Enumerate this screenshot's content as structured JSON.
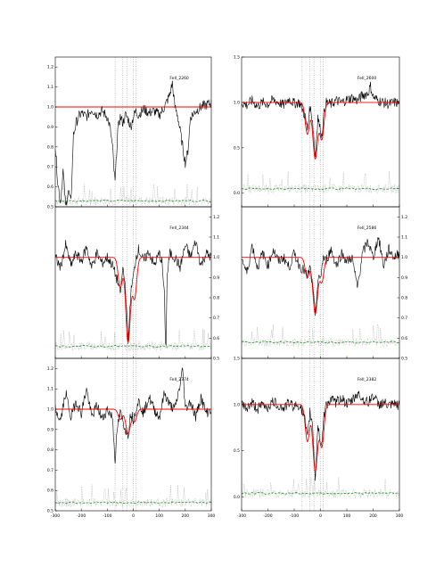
{
  "chart_data": [
    {
      "type": "line",
      "label": "FeII_2260",
      "xlim": [
        -300,
        300
      ],
      "ylim": [
        0.5,
        1.25
      ],
      "yticks": [
        "0.5",
        "0.6",
        "0.7",
        "0.8",
        "0.9",
        "1.0",
        "1.1",
        "1.2"
      ],
      "yaxis_side": "left",
      "vlines": [
        -70,
        -40,
        -25,
        0,
        10
      ],
      "components": [],
      "noise_level": 0.53,
      "segments": [
        {
          "x": [
            -300,
            -290,
            -280,
            -270,
            -260,
            -250,
            -240,
            -230,
            -220,
            -210,
            -200,
            -180,
            -160,
            -140,
            -120,
            -100,
            -90,
            -80,
            -75,
            -70,
            -65,
            -60,
            -50,
            -40,
            -30,
            -20,
            -10,
            0,
            10,
            20,
            40,
            60,
            80,
            100,
            120,
            140,
            150,
            160,
            170,
            180,
            190,
            200,
            210,
            220,
            240,
            260,
            280,
            300
          ],
          "y": [
            0.8,
            0.62,
            0.52,
            0.68,
            0.5,
            0.58,
            0.52,
            0.86,
            0.92,
            0.95,
            0.97,
            0.95,
            0.99,
            0.96,
            0.98,
            0.95,
            0.9,
            0.8,
            0.7,
            0.62,
            0.75,
            0.88,
            0.95,
            0.92,
            0.96,
            0.94,
            0.9,
            0.95,
            0.98,
            0.96,
            0.99,
            0.97,
            0.98,
            0.96,
            1.0,
            1.06,
            1.12,
            1.0,
            0.96,
            0.88,
            0.8,
            0.72,
            0.78,
            0.95,
            0.98,
            1.0,
            1.01,
            1.02
          ]
        }
      ]
    },
    {
      "type": "line",
      "label": "FeII_2600",
      "xlim": [
        -300,
        300
      ],
      "ylim": [
        -0.15,
        1.5
      ],
      "yticks": [
        "0.0",
        "0.5",
        "1.0",
        "1.5"
      ],
      "yaxis_side": "left",
      "vlines": [
        -70,
        -40,
        -25,
        0,
        10
      ],
      "components": [
        {
          "center": -50,
          "depth": 0.35,
          "width": 8
        },
        {
          "center": -20,
          "depth": 0.62,
          "width": 9
        },
        {
          "center": 5,
          "depth": 0.4,
          "width": 8
        }
      ],
      "noise_level": 0.05,
      "segments": [
        {
          "x": [
            -300,
            -280,
            -260,
            -240,
            -220,
            -200,
            -180,
            -160,
            -140,
            -120,
            -100,
            -80,
            -60,
            -50,
            -40,
            -30,
            -20,
            -10,
            0,
            5,
            10,
            20,
            40,
            60,
            80,
            100,
            120,
            140,
            160,
            180,
            190,
            200,
            220,
            240,
            260,
            280,
            300
          ],
          "y": [
            1.0,
            0.97,
            1.02,
            0.96,
            1.0,
            0.98,
            1.03,
            1.0,
            0.97,
            1.04,
            0.99,
            1.0,
            0.86,
            0.7,
            0.95,
            0.8,
            0.4,
            0.85,
            0.68,
            0.62,
            0.8,
            1.0,
            0.98,
            1.02,
            1.0,
            1.03,
            1.05,
            1.02,
            1.08,
            1.1,
            1.18,
            1.06,
            1.02,
            1.0,
            0.98,
            1.0,
            0.99
          ]
        }
      ]
    },
    {
      "type": "line",
      "label": "FeII_2344",
      "xlim": [
        -300,
        300
      ],
      "ylim": [
        0.5,
        1.25
      ],
      "yticks": [
        "0.5",
        "0.6",
        "0.7",
        "0.8",
        "0.9",
        "1.0",
        "1.1",
        "1.2"
      ],
      "yaxis_side": "right",
      "vlines": [
        -70,
        -40,
        -25,
        0,
        10
      ],
      "components": [
        {
          "center": -50,
          "depth": 0.15,
          "width": 8
        },
        {
          "center": -20,
          "depth": 0.42,
          "width": 9
        },
        {
          "center": 5,
          "depth": 0.2,
          "width": 8
        }
      ],
      "noise_level": 0.56,
      "segments": [
        {
          "x": [
            -300,
            -280,
            -260,
            -240,
            -220,
            -200,
            -180,
            -160,
            -140,
            -120,
            -100,
            -80,
            -60,
            -50,
            -40,
            -30,
            -20,
            -10,
            0,
            10,
            20,
            40,
            60,
            80,
            100,
            110,
            120,
            125,
            130,
            140,
            160,
            180,
            200,
            220,
            240,
            260,
            280,
            300
          ],
          "y": [
            1.0,
            0.95,
            1.06,
            0.96,
            1.02,
            0.98,
            1.05,
            0.95,
            1.02,
            0.97,
            1.0,
            0.96,
            0.88,
            0.82,
            0.95,
            0.85,
            0.58,
            0.82,
            0.9,
            1.0,
            1.04,
            0.98,
            1.03,
            0.96,
            1.02,
            0.98,
            0.8,
            0.5,
            0.9,
            1.02,
            1.0,
            0.95,
            1.06,
            1.0,
            1.08,
            0.96,
            1.02,
            1.0
          ]
        }
      ]
    },
    {
      "type": "line",
      "label": "FeII_2586",
      "xlim": [
        -300,
        300
      ],
      "ylim": [
        0.5,
        1.25
      ],
      "yticks": [
        "0.5",
        "0.6",
        "0.7",
        "0.8",
        "0.9",
        "1.0",
        "1.1",
        "1.2"
      ],
      "yaxis_side": "right",
      "vlines": [
        -70,
        -40,
        -25,
        0,
        10
      ],
      "components": [
        {
          "center": -50,
          "depth": 0.1,
          "width": 8
        },
        {
          "center": -20,
          "depth": 0.28,
          "width": 9
        },
        {
          "center": 5,
          "depth": 0.12,
          "width": 8
        }
      ],
      "noise_level": 0.58,
      "segments": [
        {
          "x": [
            -300,
            -280,
            -260,
            -240,
            -220,
            -200,
            -180,
            -160,
            -140,
            -120,
            -100,
            -80,
            -60,
            -50,
            -40,
            -30,
            -20,
            -10,
            0,
            10,
            20,
            40,
            60,
            80,
            100,
            120,
            140,
            160,
            180,
            200,
            220,
            240,
            260,
            280,
            300
          ],
          "y": [
            1.0,
            0.92,
            1.06,
            0.95,
            1.02,
            0.96,
            1.04,
            0.98,
            1.0,
            0.95,
            1.02,
            0.96,
            0.93,
            0.9,
            0.95,
            0.85,
            0.72,
            0.88,
            0.9,
            1.0,
            0.98,
            1.04,
            0.96,
            1.02,
            0.98,
            1.0,
            0.85,
            1.02,
            1.08,
            1.0,
            1.1,
            0.96,
            1.04,
            1.0,
            1.02
          ]
        }
      ]
    },
    {
      "type": "line",
      "label": "FeII_2374",
      "xlim": [
        -300,
        300
      ],
      "ylim": [
        0.5,
        1.25
      ],
      "yticks": [
        "0.5",
        "0.6",
        "0.7",
        "0.8",
        "0.9",
        "1.0",
        "1.1",
        "1.2"
      ],
      "yaxis_side": "left",
      "vlines": [
        -70,
        -40,
        -25,
        0,
        10
      ],
      "components": [
        {
          "center": -50,
          "depth": 0.05,
          "width": 8
        },
        {
          "center": -20,
          "depth": 0.12,
          "width": 9
        },
        {
          "center": 5,
          "depth": 0.06,
          "width": 8
        }
      ],
      "noise_level": 0.54,
      "segments": [
        {
          "x": [
            -300,
            -280,
            -260,
            -240,
            -220,
            -200,
            -180,
            -160,
            -140,
            -120,
            -100,
            -80,
            -70,
            -60,
            -50,
            -40,
            -30,
            -20,
            -10,
            0,
            10,
            20,
            40,
            60,
            80,
            100,
            120,
            140,
            160,
            180,
            190,
            200,
            220,
            240,
            260,
            280,
            300
          ],
          "y": [
            1.0,
            0.94,
            1.08,
            0.96,
            1.04,
            0.98,
            1.1,
            0.96,
            1.02,
            0.95,
            1.0,
            0.96,
            0.75,
            0.92,
            0.98,
            0.94,
            0.9,
            0.88,
            0.98,
            0.95,
            1.0,
            1.04,
            0.98,
            1.06,
            1.0,
            0.96,
            1.08,
            1.02,
            1.0,
            1.12,
            1.2,
            1.0,
            1.04,
            0.96,
            1.06,
            0.98,
            1.0
          ]
        }
      ]
    },
    {
      "type": "line",
      "label": "FeII_2382",
      "xlim": [
        -300,
        300
      ],
      "ylim": [
        -0.15,
        1.5
      ],
      "yticks": [
        "0.0",
        "0.5",
        "1.0",
        "1.5"
      ],
      "yaxis_side": "left",
      "vlines": [
        -70,
        -40,
        -25,
        0,
        10
      ],
      "components": [
        {
          "center": -50,
          "depth": 0.4,
          "width": 8
        },
        {
          "center": -20,
          "depth": 0.72,
          "width": 9
        },
        {
          "center": 5,
          "depth": 0.45,
          "width": 8
        }
      ],
      "noise_level": 0.04,
      "segments": [
        {
          "x": [
            -300,
            -280,
            -260,
            -240,
            -220,
            -200,
            -180,
            -160,
            -140,
            -120,
            -100,
            -80,
            -60,
            -50,
            -40,
            -30,
            -20,
            -10,
            0,
            5,
            10,
            20,
            40,
            60,
            80,
            100,
            120,
            140,
            160,
            180,
            200,
            220,
            240,
            260,
            280,
            300
          ],
          "y": [
            1.0,
            0.96,
            1.02,
            0.95,
            1.0,
            0.97,
            1.03,
            0.99,
            0.96,
            1.02,
            0.98,
            1.0,
            0.84,
            0.62,
            0.92,
            0.78,
            0.2,
            0.78,
            0.6,
            0.56,
            0.78,
            1.0,
            1.05,
            1.02,
            1.08,
            1.0,
            1.04,
            1.12,
            1.06,
            1.02,
            1.1,
            1.0,
            1.02,
            0.98,
            1.0,
            0.99
          ]
        }
      ]
    }
  ],
  "xticks": [
    "-300",
    "-200",
    "-100",
    "0",
    "100",
    "200",
    "300"
  ],
  "colors": {
    "data": "#000000",
    "model": "#ff0000",
    "noise": "#228b22",
    "raw": "#a9a9a9",
    "vline": "#999999"
  }
}
